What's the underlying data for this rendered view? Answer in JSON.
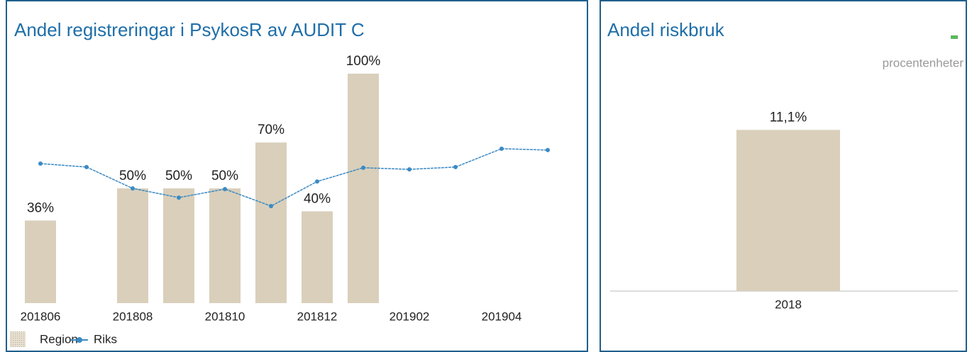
{
  "chart_data": [
    {
      "type": "bar",
      "title": "Andel registreringar i PsykosR av AUDIT C",
      "categories": [
        "201806",
        null,
        "201808",
        null,
        "201810",
        null,
        "201812",
        null,
        "201902",
        null,
        "201904",
        null
      ],
      "ylim": [
        0,
        100
      ],
      "series": [
        {
          "name": "Region",
          "type": "bar",
          "color": "#d9cfbb",
          "values": [
            36,
            null,
            50,
            50,
            50,
            70,
            40,
            100,
            null,
            null,
            null,
            null
          ],
          "value_labels": [
            "36%",
            null,
            "50%",
            "50%",
            "50%",
            "70%",
            "40%",
            "100%",
            null,
            null,
            null,
            null
          ]
        },
        {
          "name": "Riks",
          "type": "line",
          "color": "#3a8ac4",
          "values": [
            60.8,
            59.3,
            50,
            46,
            49.7,
            42.3,
            53,
            59,
            58.3,
            59.3,
            67.3,
            66.7
          ]
        }
      ]
    },
    {
      "type": "bar",
      "title": "Andel riskbruk",
      "subtitle": "procentenheter",
      "categories": [
        "2018"
      ],
      "values": [
        11.1
      ],
      "value_labels": [
        "11,1%"
      ],
      "color": "#d9cfbb",
      "ylim": [
        0,
        12
      ]
    }
  ]
}
